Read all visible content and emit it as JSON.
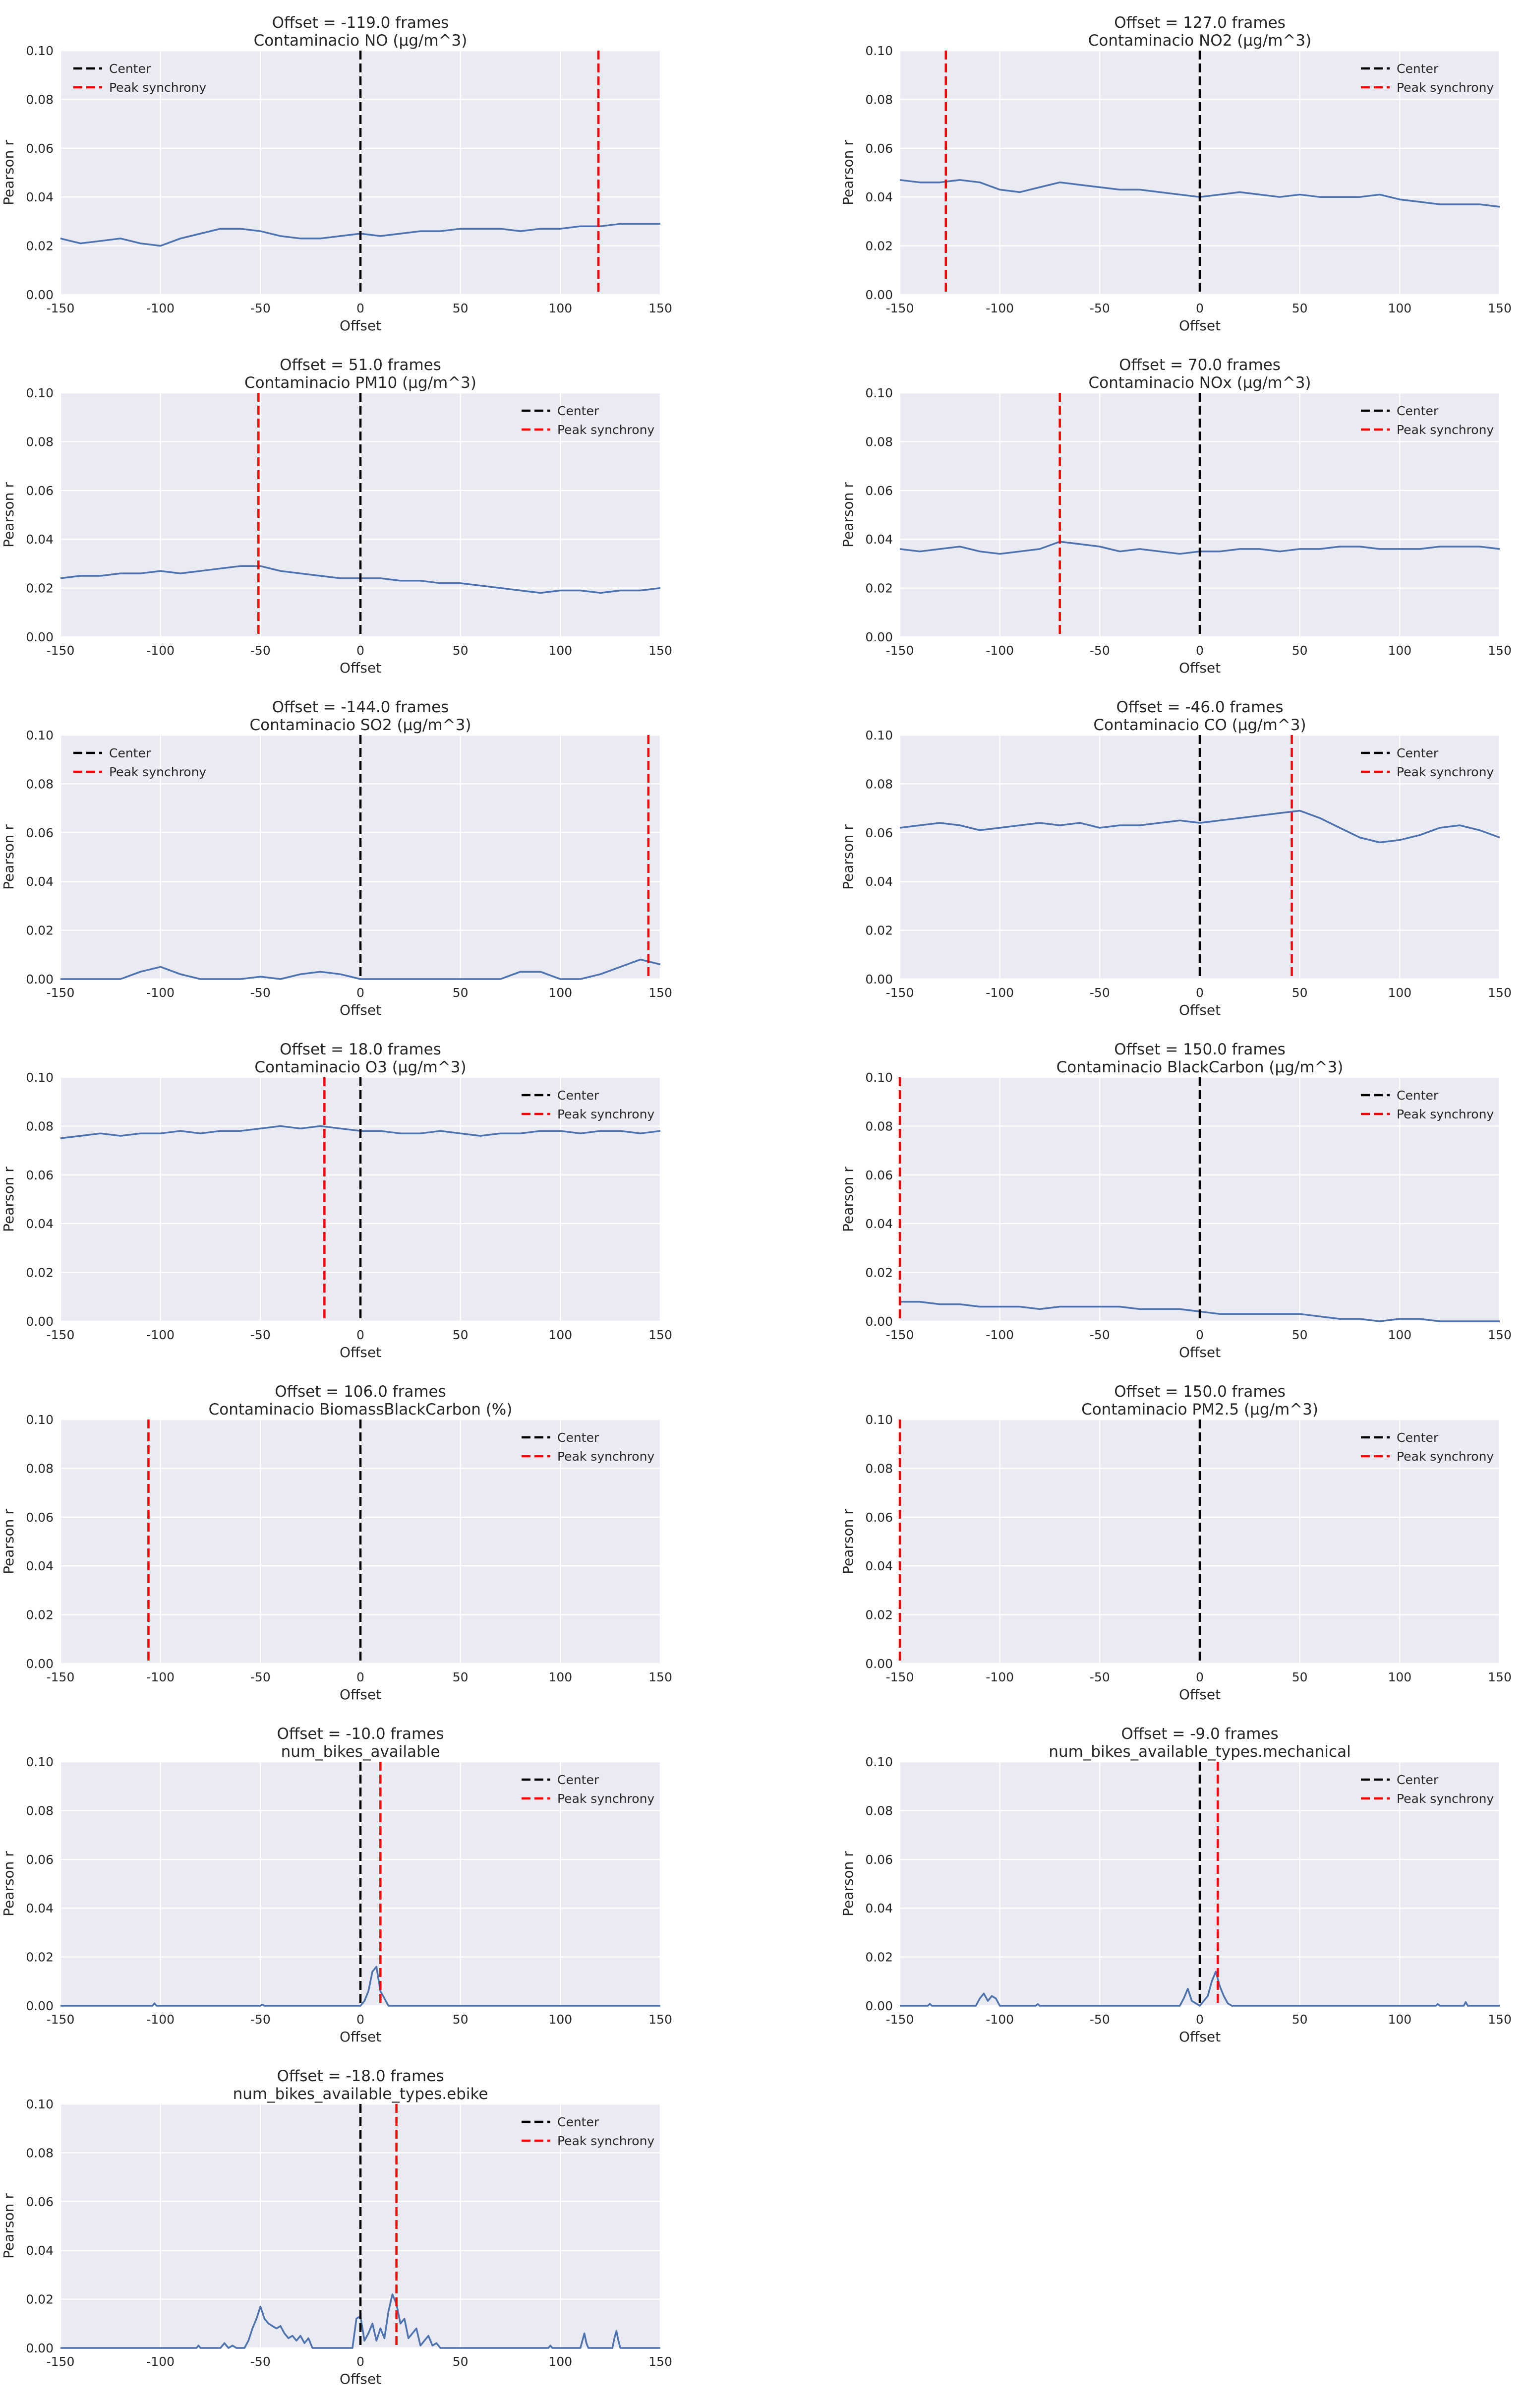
{
  "shared": {
    "xlabel": "Offset",
    "ylabel": "Pearson r",
    "xlim": [
      -150,
      150
    ],
    "ylim": [
      0,
      0.1
    ],
    "xticks": [
      "-150",
      "-100",
      "-50",
      "0",
      "50",
      "100",
      "150"
    ],
    "yticks": [
      "0.00",
      "0.02",
      "0.04",
      "0.06",
      "0.08",
      "0.10"
    ],
    "legend": [
      "Center",
      "Peak synchrony"
    ],
    "colors": {
      "background": "#EAEAF2",
      "grid": "#FFFFFF",
      "series": "#4C72B0",
      "center": "#000000",
      "peak": "#FF0000",
      "text": "#262626"
    },
    "legend_position": "top-right"
  },
  "chart_data": [
    {
      "type": "line",
      "title": "Offset = -119.0 frames",
      "subtitle": "Contaminacio NO (μg/m^3)",
      "xlabel": "Offset",
      "ylabel": "Pearson r",
      "xlim": [
        -150,
        150
      ],
      "ylim": [
        0,
        0.1
      ],
      "center_x": 0,
      "peak_x": 119,
      "grid": true,
      "legend_position": "top-left",
      "series": [
        {
          "name": "Pearson r",
          "x": [
            -150,
            -140,
            -130,
            -120,
            -110,
            -100,
            -90,
            -80,
            -70,
            -60,
            -50,
            -40,
            -30,
            -20,
            -10,
            0,
            10,
            20,
            30,
            40,
            50,
            60,
            70,
            80,
            90,
            100,
            110,
            120,
            130,
            140,
            150
          ],
          "values": [
            0.023,
            0.021,
            0.022,
            0.023,
            0.021,
            0.02,
            0.023,
            0.025,
            0.027,
            0.027,
            0.026,
            0.024,
            0.023,
            0.023,
            0.024,
            0.025,
            0.024,
            0.025,
            0.026,
            0.026,
            0.027,
            0.027,
            0.027,
            0.026,
            0.027,
            0.027,
            0.028,
            0.028,
            0.029,
            0.029,
            0.029
          ]
        }
      ]
    },
    {
      "type": "line",
      "title": "Offset = 127.0 frames",
      "subtitle": "Contaminacio NO2 (μg/m^3)",
      "xlabel": "Offset",
      "ylabel": "Pearson r",
      "xlim": [
        -150,
        150
      ],
      "ylim": [
        0,
        0.1
      ],
      "center_x": 0,
      "peak_x": -127,
      "grid": true,
      "legend_position": "top-right",
      "series": [
        {
          "name": "Pearson r",
          "x": [
            -150,
            -140,
            -130,
            -120,
            -110,
            -100,
            -90,
            -80,
            -70,
            -60,
            -50,
            -40,
            -30,
            -20,
            -10,
            0,
            10,
            20,
            30,
            40,
            50,
            60,
            70,
            80,
            90,
            100,
            110,
            120,
            130,
            140,
            150
          ],
          "values": [
            0.047,
            0.046,
            0.046,
            0.047,
            0.046,
            0.043,
            0.042,
            0.044,
            0.046,
            0.045,
            0.044,
            0.043,
            0.043,
            0.042,
            0.041,
            0.04,
            0.041,
            0.042,
            0.041,
            0.04,
            0.041,
            0.04,
            0.04,
            0.04,
            0.041,
            0.039,
            0.038,
            0.037,
            0.037,
            0.037,
            0.036
          ]
        }
      ]
    },
    {
      "type": "line",
      "title": "Offset = 51.0 frames",
      "subtitle": "Contaminacio PM10 (μg/m^3)",
      "xlabel": "Offset",
      "ylabel": "Pearson r",
      "xlim": [
        -150,
        150
      ],
      "ylim": [
        0,
        0.1
      ],
      "center_x": 0,
      "peak_x": -51,
      "grid": true,
      "legend_position": "top-right",
      "series": [
        {
          "name": "Pearson r",
          "x": [
            -150,
            -140,
            -130,
            -120,
            -110,
            -100,
            -90,
            -80,
            -70,
            -60,
            -50,
            -40,
            -30,
            -20,
            -10,
            0,
            10,
            20,
            30,
            40,
            50,
            60,
            70,
            80,
            90,
            100,
            110,
            120,
            130,
            140,
            150
          ],
          "values": [
            0.024,
            0.025,
            0.025,
            0.026,
            0.026,
            0.027,
            0.026,
            0.027,
            0.028,
            0.029,
            0.029,
            0.027,
            0.026,
            0.025,
            0.024,
            0.024,
            0.024,
            0.023,
            0.023,
            0.022,
            0.022,
            0.021,
            0.02,
            0.019,
            0.018,
            0.019,
            0.019,
            0.018,
            0.019,
            0.019,
            0.02
          ]
        }
      ]
    },
    {
      "type": "line",
      "title": "Offset = 70.0 frames",
      "subtitle": "Contaminacio NOx (μg/m^3)",
      "xlabel": "Offset",
      "ylabel": "Pearson r",
      "xlim": [
        -150,
        150
      ],
      "ylim": [
        0,
        0.1
      ],
      "center_x": 0,
      "peak_x": -70,
      "grid": true,
      "legend_position": "top-right",
      "series": [
        {
          "name": "Pearson r",
          "x": [
            -150,
            -140,
            -130,
            -120,
            -110,
            -100,
            -90,
            -80,
            -70,
            -60,
            -50,
            -40,
            -30,
            -20,
            -10,
            0,
            10,
            20,
            30,
            40,
            50,
            60,
            70,
            80,
            90,
            100,
            110,
            120,
            130,
            140,
            150
          ],
          "values": [
            0.036,
            0.035,
            0.036,
            0.037,
            0.035,
            0.034,
            0.035,
            0.036,
            0.039,
            0.038,
            0.037,
            0.035,
            0.036,
            0.035,
            0.034,
            0.035,
            0.035,
            0.036,
            0.036,
            0.035,
            0.036,
            0.036,
            0.037,
            0.037,
            0.036,
            0.036,
            0.036,
            0.037,
            0.037,
            0.037,
            0.036
          ]
        }
      ]
    },
    {
      "type": "line",
      "title": "Offset = -144.0 frames",
      "subtitle": "Contaminacio SO2 (μg/m^3)",
      "xlabel": "Offset",
      "ylabel": "Pearson r",
      "xlim": [
        -150,
        150
      ],
      "ylim": [
        0,
        0.1
      ],
      "center_x": 0,
      "peak_x": 144,
      "grid": true,
      "legend_position": "top-left",
      "series": [
        {
          "name": "Pearson r",
          "x": [
            -150,
            -140,
            -130,
            -120,
            -110,
            -100,
            -90,
            -80,
            -70,
            -60,
            -50,
            -40,
            -30,
            -20,
            -10,
            0,
            10,
            20,
            30,
            40,
            50,
            60,
            70,
            80,
            90,
            100,
            110,
            120,
            130,
            140,
            150
          ],
          "values": [
            0,
            0,
            0,
            0,
            0.003,
            0.005,
            0.002,
            0,
            0,
            0,
            0.001,
            0,
            0.002,
            0.003,
            0.002,
            0,
            0,
            0,
            0,
            0,
            0,
            0,
            0,
            0.003,
            0.003,
            0,
            0,
            0.002,
            0.005,
            0.008,
            0.006
          ]
        }
      ]
    },
    {
      "type": "line",
      "title": "Offset = -46.0 frames",
      "subtitle": "Contaminacio CO (μg/m^3)",
      "xlabel": "Offset",
      "ylabel": "Pearson r",
      "xlim": [
        -150,
        150
      ],
      "ylim": [
        0,
        0.1
      ],
      "center_x": 0,
      "peak_x": 46,
      "grid": true,
      "legend_position": "top-right",
      "series": [
        {
          "name": "Pearson r",
          "x": [
            -150,
            -140,
            -130,
            -120,
            -110,
            -100,
            -90,
            -80,
            -70,
            -60,
            -50,
            -40,
            -30,
            -20,
            -10,
            0,
            10,
            20,
            30,
            40,
            50,
            60,
            70,
            80,
            90,
            100,
            110,
            120,
            130,
            140,
            150
          ],
          "values": [
            0.062,
            0.063,
            0.064,
            0.063,
            0.061,
            0.062,
            0.063,
            0.064,
            0.063,
            0.064,
            0.062,
            0.063,
            0.063,
            0.064,
            0.065,
            0.064,
            0.065,
            0.066,
            0.067,
            0.068,
            0.069,
            0.066,
            0.062,
            0.058,
            0.056,
            0.057,
            0.059,
            0.062,
            0.063,
            0.061,
            0.058
          ]
        }
      ]
    },
    {
      "type": "line",
      "title": "Offset = 18.0 frames",
      "subtitle": "Contaminacio O3 (μg/m^3)",
      "xlabel": "Offset",
      "ylabel": "Pearson r",
      "xlim": [
        -150,
        150
      ],
      "ylim": [
        0,
        0.1
      ],
      "center_x": 0,
      "peak_x": -18,
      "grid": true,
      "legend_position": "top-right",
      "series": [
        {
          "name": "Pearson r",
          "x": [
            -150,
            -140,
            -130,
            -120,
            -110,
            -100,
            -90,
            -80,
            -70,
            -60,
            -50,
            -40,
            -30,
            -20,
            -10,
            0,
            10,
            20,
            30,
            40,
            50,
            60,
            70,
            80,
            90,
            100,
            110,
            120,
            130,
            140,
            150
          ],
          "values": [
            0.075,
            0.076,
            0.077,
            0.076,
            0.077,
            0.077,
            0.078,
            0.077,
            0.078,
            0.078,
            0.079,
            0.08,
            0.079,
            0.08,
            0.079,
            0.078,
            0.078,
            0.077,
            0.077,
            0.078,
            0.077,
            0.076,
            0.077,
            0.077,
            0.078,
            0.078,
            0.077,
            0.078,
            0.078,
            0.077,
            0.078
          ]
        }
      ]
    },
    {
      "type": "line",
      "title": "Offset = 150.0 frames",
      "subtitle": "Contaminacio BlackCarbon (μg/m^3)",
      "xlabel": "Offset",
      "ylabel": "Pearson r",
      "xlim": [
        -150,
        150
      ],
      "ylim": [
        0,
        0.1
      ],
      "center_x": 0,
      "peak_x": -150,
      "grid": true,
      "legend_position": "top-right",
      "series": [
        {
          "name": "Pearson r",
          "x": [
            -150,
            -140,
            -130,
            -120,
            -110,
            -100,
            -90,
            -80,
            -70,
            -60,
            -50,
            -40,
            -30,
            -20,
            -10,
            0,
            10,
            20,
            30,
            40,
            50,
            60,
            70,
            80,
            90,
            100,
            110,
            120,
            130,
            140,
            150
          ],
          "values": [
            0.008,
            0.008,
            0.007,
            0.007,
            0.006,
            0.006,
            0.006,
            0.005,
            0.006,
            0.006,
            0.006,
            0.006,
            0.005,
            0.005,
            0.005,
            0.004,
            0.003,
            0.003,
            0.003,
            0.003,
            0.003,
            0.002,
            0.001,
            0.001,
            0,
            0.001,
            0.001,
            0,
            0,
            0,
            0
          ]
        }
      ]
    },
    {
      "type": "line",
      "title": "Offset = 106.0 frames",
      "subtitle": "Contaminacio BiomassBlackCarbon (%)",
      "xlabel": "Offset",
      "ylabel": "Pearson r",
      "xlim": [
        -150,
        150
      ],
      "ylim": [
        0,
        0.1
      ],
      "center_x": 0,
      "peak_x": -106,
      "grid": true,
      "legend_position": "top-right",
      "series": []
    },
    {
      "type": "line",
      "title": "Offset = 150.0 frames",
      "subtitle": "Contaminacio PM2.5 (μg/m^3)",
      "xlabel": "Offset",
      "ylabel": "Pearson r",
      "xlim": [
        -150,
        150
      ],
      "ylim": [
        0,
        0.1
      ],
      "center_x": 0,
      "peak_x": -150,
      "grid": true,
      "legend_position": "top-right",
      "series": []
    },
    {
      "type": "line",
      "title": "Offset = -10.0 frames",
      "subtitle": "num_bikes_available",
      "xlabel": "Offset",
      "ylabel": "Pearson r",
      "xlim": [
        -150,
        150
      ],
      "ylim": [
        0,
        0.1
      ],
      "center_x": 0,
      "peak_x": 10,
      "grid": true,
      "legend_position": "top-right",
      "series": [
        {
          "name": "Pearson r",
          "x": [
            -150,
            -104,
            -103,
            -102,
            -60,
            -50,
            -49,
            -48,
            -20,
            0,
            2,
            4,
            6,
            8,
            10,
            12,
            14,
            20,
            150
          ],
          "values": [
            0,
            0,
            0.001,
            0,
            0,
            0,
            0.0005,
            0,
            0,
            0,
            0.002,
            0.006,
            0.014,
            0.016,
            0.006,
            0.003,
            0,
            0,
            0
          ]
        }
      ]
    },
    {
      "type": "line",
      "title": "Offset = -9.0 frames",
      "subtitle": "num_bikes_available_types.mechanical",
      "xlabel": "Offset",
      "ylabel": "Pearson r",
      "xlim": [
        -150,
        150
      ],
      "ylim": [
        0,
        0.1
      ],
      "center_x": 0,
      "peak_x": 9,
      "grid": true,
      "legend_position": "top-right",
      "series": [
        {
          "name": "Pearson r",
          "x": [
            -150,
            -136,
            -135,
            -134,
            -112,
            -110,
            -108,
            -106,
            -104,
            -102,
            -100,
            -82,
            -81,
            -80,
            -10,
            -8,
            -6,
            -4,
            0,
            4,
            6,
            8,
            10,
            12,
            14,
            16,
            118,
            119,
            120,
            132,
            133,
            134,
            150
          ],
          "values": [
            0,
            0,
            0.0008,
            0,
            0,
            0.003,
            0.005,
            0.002,
            0.004,
            0.003,
            0,
            0,
            0.0007,
            0,
            0,
            0.003,
            0.007,
            0.002,
            0,
            0.004,
            0.01,
            0.014,
            0.008,
            0.004,
            0.001,
            0,
            0,
            0.0007,
            0,
            0,
            0.0015,
            0,
            0
          ]
        }
      ]
    },
    {
      "type": "line",
      "title": "Offset = -18.0 frames",
      "subtitle": "num_bikes_available_types.ebike",
      "xlabel": "Offset",
      "ylabel": "Pearson r",
      "xlim": [
        -150,
        150
      ],
      "ylim": [
        0,
        0.1
      ],
      "center_x": 0,
      "peak_x": 18,
      "grid": true,
      "legend_position": "top-right",
      "series": [
        {
          "name": "Pearson r",
          "x": [
            -150,
            -82,
            -81,
            -80,
            -70,
            -68,
            -66,
            -64,
            -62,
            -58,
            -56,
            -54,
            -52,
            -50,
            -48,
            -46,
            -44,
            -42,
            -40,
            -38,
            -36,
            -34,
            -32,
            -30,
            -28,
            -26,
            -24,
            -20,
            -4,
            -2,
            0,
            2,
            4,
            6,
            8,
            10,
            12,
            14,
            16,
            18,
            20,
            22,
            24,
            26,
            28,
            30,
            32,
            34,
            36,
            38,
            40,
            94,
            95,
            96,
            110,
            111,
            112,
            113,
            114,
            126,
            127,
            128,
            129,
            130,
            150
          ],
          "values": [
            0,
            0,
            0.001,
            0,
            0,
            0.002,
            0,
            0.001,
            0,
            0,
            0.003,
            0.008,
            0.012,
            0.017,
            0.012,
            0.01,
            0.009,
            0.008,
            0.009,
            0.006,
            0.004,
            0.005,
            0.003,
            0.005,
            0.002,
            0.004,
            0,
            0,
            0,
            0.012,
            0.013,
            0.003,
            0.006,
            0.01,
            0.003,
            0.008,
            0.004,
            0.015,
            0.022,
            0.018,
            0.01,
            0.012,
            0.004,
            0.006,
            0.008,
            0.001,
            0.003,
            0.005,
            0.001,
            0.002,
            0,
            0,
            0.001,
            0,
            0,
            0.003,
            0.006,
            0.002,
            0,
            0,
            0.004,
            0.007,
            0.003,
            0,
            0
          ]
        }
      ]
    }
  ]
}
